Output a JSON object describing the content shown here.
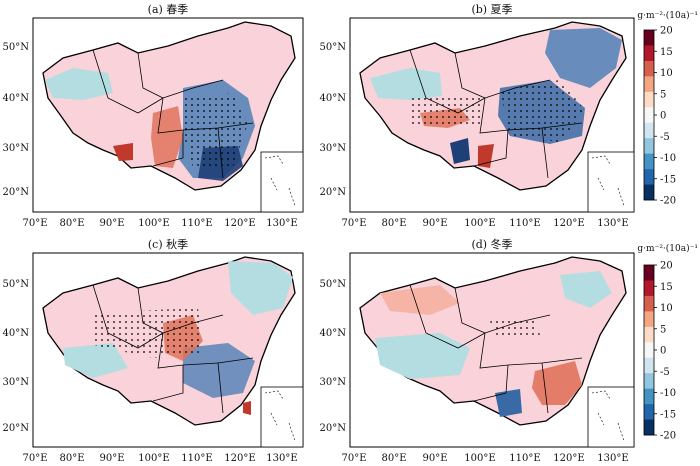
{
  "panels": [
    {
      "id": "a",
      "title": "(a) 春季"
    },
    {
      "id": "b",
      "title": "(b) 夏季"
    },
    {
      "id": "c",
      "title": "(c) 秋季"
    },
    {
      "id": "d",
      "title": "(d) 冬季"
    }
  ],
  "axes": {
    "x_ticks": [
      "70°E",
      "80°E",
      "90°E",
      "100°E",
      "110°E",
      "120°E",
      "130°E"
    ],
    "y_ticks": [
      "50°N",
      "40°N",
      "30°N",
      "20°N"
    ]
  },
  "colorbar": {
    "unit": "g·m⁻²·(10a)⁻¹",
    "tick_labels": [
      "20",
      "15",
      "10",
      "5",
      "0",
      "-5",
      "-10",
      "-15",
      "-20"
    ],
    "colors": [
      "#67001f",
      "#b2182b",
      "#d6604d",
      "#f4a582",
      "#fddbc7",
      "#f7f7f7",
      "#d1e5f0",
      "#92c5de",
      "#4393c3",
      "#2166ac",
      "#053061"
    ],
    "count": 2
  }
}
